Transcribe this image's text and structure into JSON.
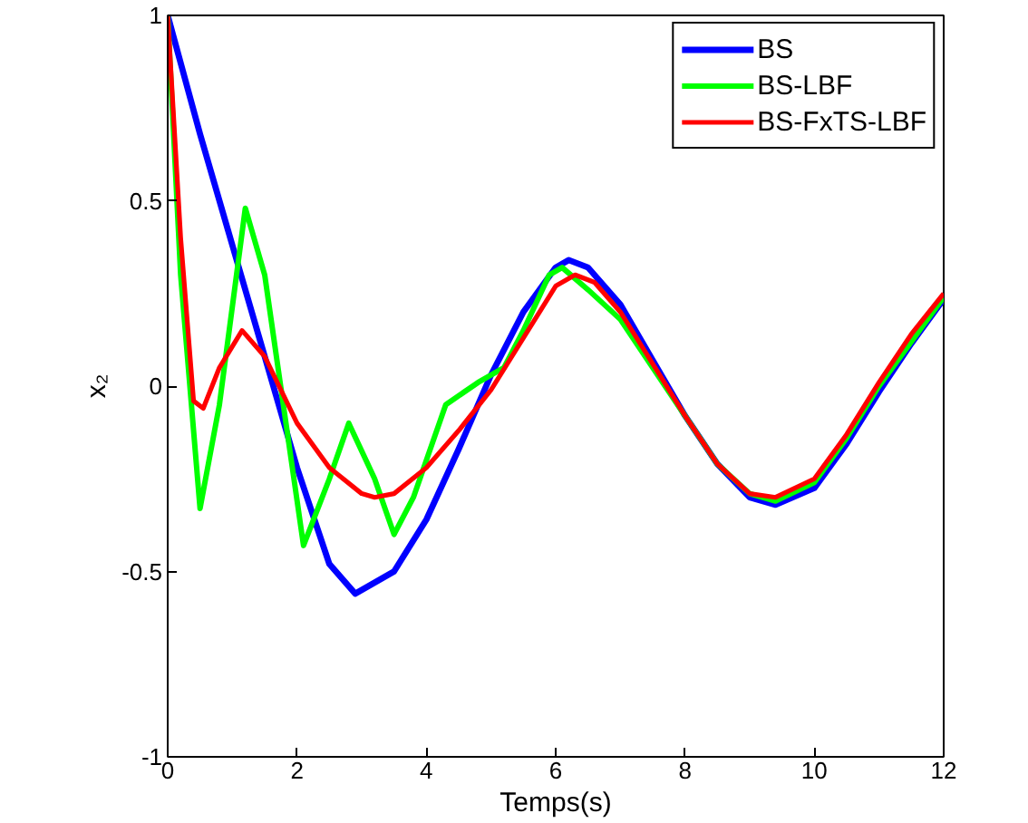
{
  "chart_data": {
    "type": "line",
    "xlabel": "Temps(s)",
    "ylabel": "x₂",
    "xlim": [
      0,
      12
    ],
    "ylim": [
      -1,
      1
    ],
    "xticks": [
      0,
      2,
      4,
      6,
      8,
      10,
      12
    ],
    "yticks": [
      -1,
      -0.5,
      0,
      0.5,
      1
    ],
    "grid": false,
    "legend": "top right",
    "line_style": "solid",
    "marker": "none",
    "series": [
      {
        "name": "BS",
        "color": "#0000ff",
        "x": [
          0,
          0.5,
          1,
          1.5,
          2,
          2.5,
          2.9,
          3.5,
          4,
          4.5,
          5,
          5.5,
          6,
          6.2,
          6.5,
          7,
          7.5,
          8,
          8.5,
          9,
          9.4,
          10,
          10.5,
          11,
          11.5,
          12
        ],
        "values": [
          1,
          0.68,
          0.38,
          0.08,
          -0.22,
          -0.48,
          -0.56,
          -0.5,
          -0.36,
          -0.17,
          0.03,
          0.2,
          0.32,
          0.34,
          0.32,
          0.22,
          0.07,
          -0.08,
          -0.21,
          -0.3,
          -0.32,
          -0.275,
          -0.155,
          -0.015,
          0.115,
          0.235
        ]
      },
      {
        "name": "BS-LBF",
        "color": "#00ff00",
        "x": [
          0,
          0.2,
          0.5,
          0.8,
          1.2,
          1.5,
          2.1,
          2.5,
          2.8,
          3.2,
          3.5,
          3.8,
          4.3,
          4.8,
          5.2,
          5.5,
          5.9,
          6.1,
          6.5,
          7,
          7.5,
          8,
          8.5,
          9,
          9.4,
          10,
          10.5,
          11,
          11.5,
          12
        ],
        "values": [
          1,
          0.3,
          -0.33,
          -0.05,
          0.48,
          0.3,
          -0.43,
          -0.25,
          -0.1,
          -0.25,
          -0.4,
          -0.3,
          -0.05,
          0.01,
          0.05,
          0.15,
          0.3,
          0.32,
          0.26,
          0.18,
          0.05,
          -0.08,
          -0.21,
          -0.29,
          -0.31,
          -0.26,
          -0.14,
          0,
          0.12,
          0.24
        ]
      },
      {
        "name": "BS-FxTS-LBF",
        "color": "#ff0000",
        "x": [
          0,
          0.2,
          0.4,
          0.55,
          0.8,
          1.15,
          1.5,
          2,
          2.5,
          3,
          3.2,
          3.5,
          4,
          4.5,
          5,
          5.5,
          6,
          6.3,
          6.6,
          7,
          7.5,
          8,
          8.5,
          9,
          9.4,
          10,
          10.5,
          11,
          11.5,
          12
        ],
        "values": [
          1,
          0.4,
          -0.04,
          -0.06,
          0.05,
          0.15,
          0.08,
          -0.1,
          -0.22,
          -0.29,
          -0.3,
          -0.29,
          -0.22,
          -0.12,
          -0.01,
          0.13,
          0.27,
          0.3,
          0.28,
          0.2,
          0.06,
          -0.08,
          -0.21,
          -0.29,
          -0.3,
          -0.25,
          -0.13,
          0.01,
          0.14,
          0.25
        ]
      }
    ]
  }
}
